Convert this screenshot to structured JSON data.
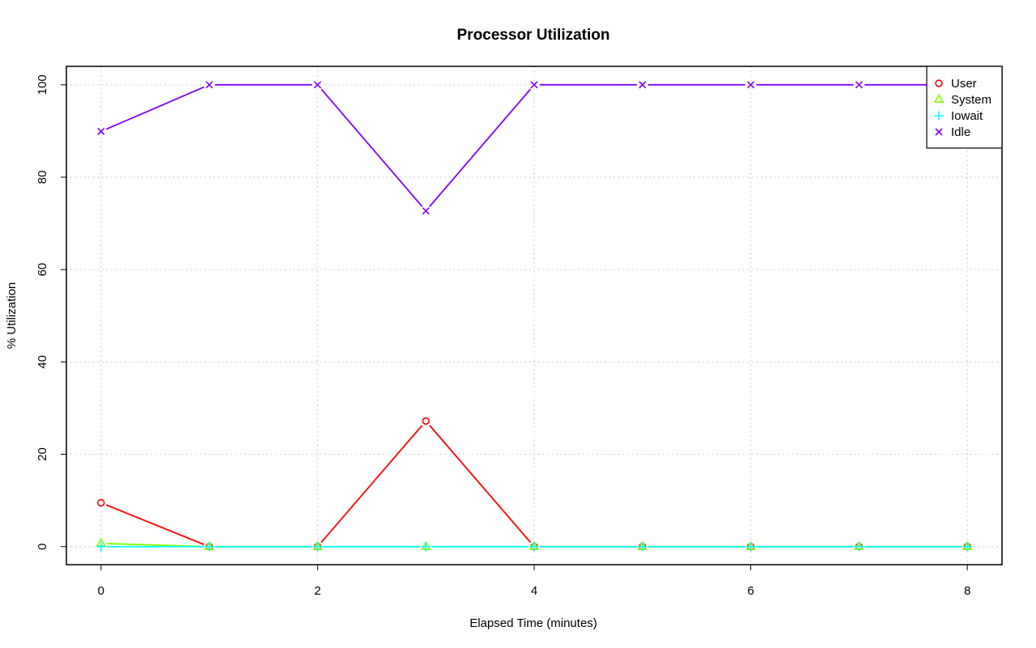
{
  "chart_data": {
    "type": "line",
    "title": "Processor Utilization",
    "xlabel": "Elapsed Time (minutes)",
    "ylabel": "% Utilization",
    "x": [
      0,
      1,
      2,
      3,
      4,
      5,
      6,
      7,
      8
    ],
    "xlim": [
      -0.32,
      8.32
    ],
    "ylim": [
      -3.9,
      104
    ],
    "xticks": [
      "0",
      "2",
      "4",
      "6",
      "8"
    ],
    "yticks": [
      "0",
      "20",
      "40",
      "60",
      "80",
      "100"
    ],
    "grid": true,
    "legend_position": "top-right",
    "series": [
      {
        "name": "User",
        "color": "#ff0000",
        "marker": "circle",
        "values": [
          9.5,
          0,
          0,
          27.2,
          0,
          0,
          0,
          0,
          0
        ]
      },
      {
        "name": "System",
        "color": "#80ff00",
        "marker": "triangle",
        "values": [
          0.7,
          0,
          0,
          0,
          0,
          0,
          0,
          0,
          0
        ]
      },
      {
        "name": "Iowait",
        "color": "#00ffff",
        "marker": "plus",
        "values": [
          0,
          0,
          0,
          0,
          0,
          0,
          0,
          0,
          0
        ]
      },
      {
        "name": "Idle",
        "color": "#8000ff",
        "marker": "cross",
        "values": [
          89.9,
          100,
          100,
          72.7,
          100,
          100,
          100,
          100,
          100
        ]
      }
    ]
  }
}
